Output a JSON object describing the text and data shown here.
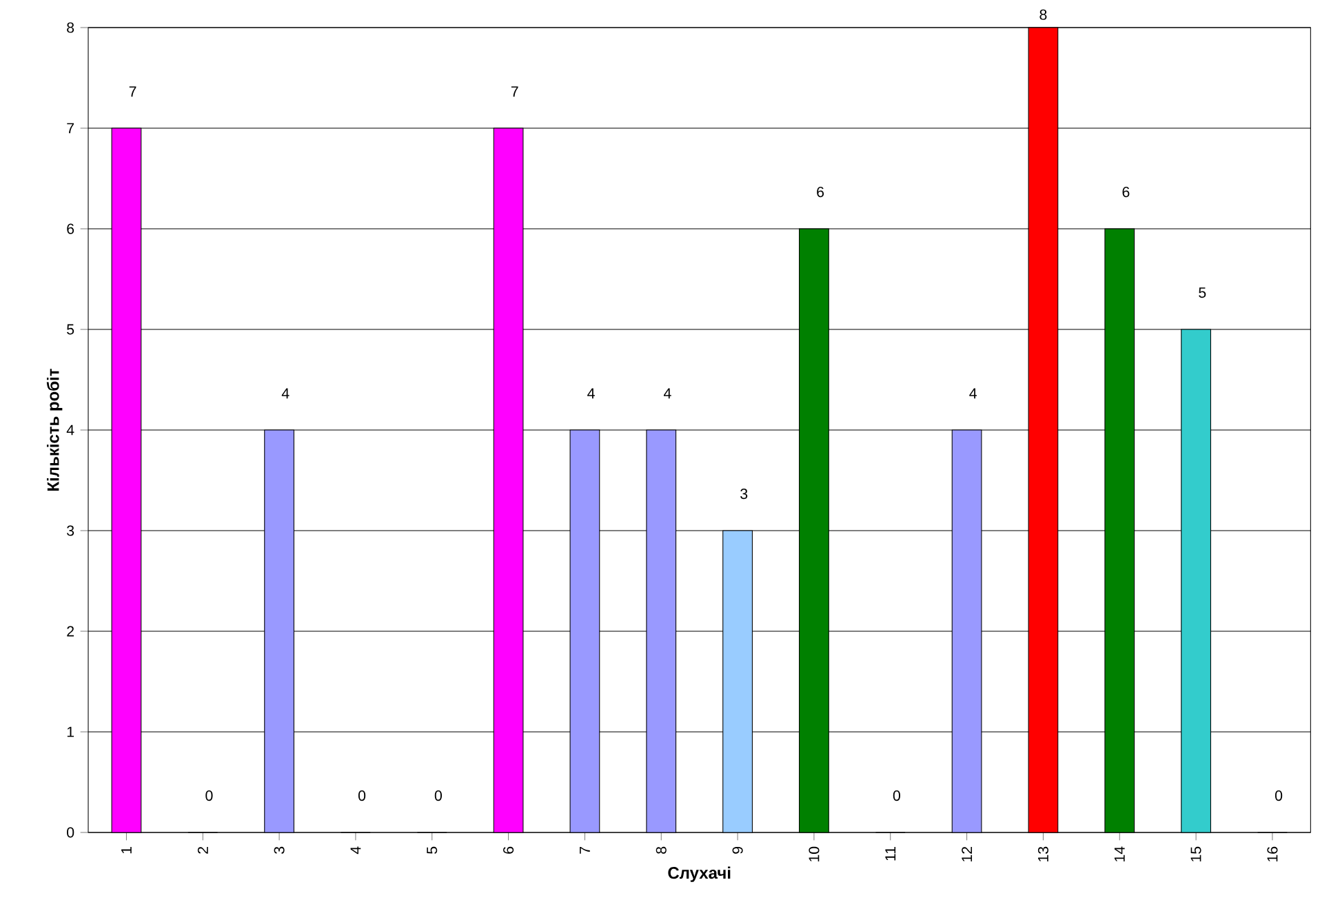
{
  "chart_data": {
    "type": "bar",
    "xlabel": "Слухачі",
    "ylabel": "Кількість робіт",
    "categories": [
      "1",
      "2",
      "3",
      "4",
      "5",
      "6",
      "7",
      "8",
      "9",
      "10",
      "11",
      "12",
      "13",
      "14",
      "15",
      "16"
    ],
    "values": [
      7,
      0,
      4,
      0,
      0,
      7,
      4,
      4,
      3,
      6,
      0,
      4,
      8,
      6,
      5,
      0
    ],
    "colors": [
      "#ff00ff",
      "#9999ff",
      "#9999ff",
      "#9999ff",
      "#9999ff",
      "#ff00ff",
      "#9999ff",
      "#9999ff",
      "#99ccff",
      "#008000",
      "#9999ff",
      "#9999ff",
      "#ff0000",
      "#008000",
      "#33cccc",
      "#9999ff"
    ],
    "ylim": [
      0,
      8
    ],
    "yticks": [
      0,
      1,
      2,
      3,
      4,
      5,
      6,
      7,
      8
    ],
    "grid": "y",
    "data_labels": true
  }
}
